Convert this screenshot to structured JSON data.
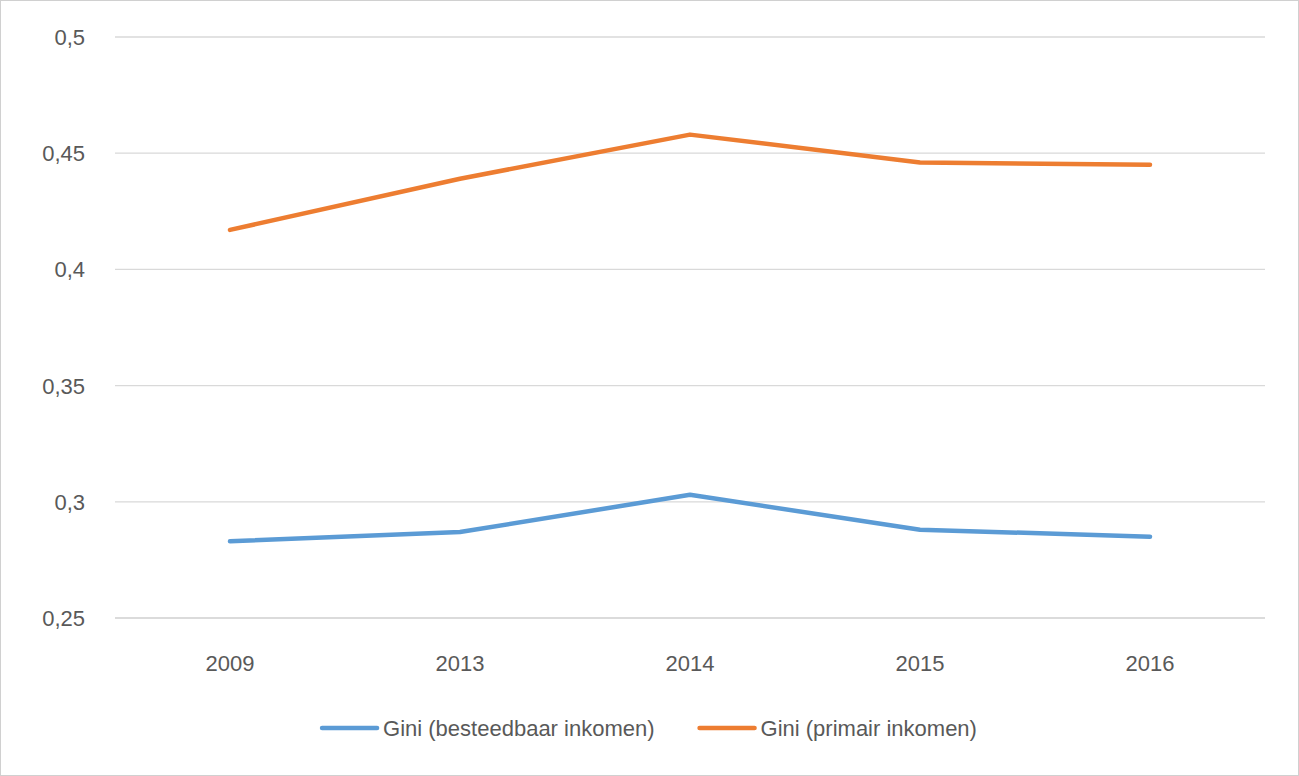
{
  "chart_data": {
    "type": "line",
    "categories": [
      "2009",
      "2013",
      "2014",
      "2015",
      "2016"
    ],
    "series": [
      {
        "name": "Gini (besteedbaar inkomen)",
        "color": "#5b9bd5",
        "values": [
          0.283,
          0.287,
          0.303,
          0.288,
          0.285
        ]
      },
      {
        "name": "Gini (primair inkomen)",
        "color": "#ed7d31",
        "values": [
          0.417,
          0.439,
          0.458,
          0.446,
          0.445
        ]
      }
    ],
    "ylim": [
      0.25,
      0.5
    ],
    "yticks": [
      {
        "value": 0.25,
        "label": "0,25"
      },
      {
        "value": 0.3,
        "label": "0,3"
      },
      {
        "value": 0.35,
        "label": "0,35"
      },
      {
        "value": 0.4,
        "label": "0,4"
      },
      {
        "value": 0.45,
        "label": "0,45"
      },
      {
        "value": 0.5,
        "label": "0,5"
      }
    ],
    "grid": true,
    "legend": "bottom"
  }
}
